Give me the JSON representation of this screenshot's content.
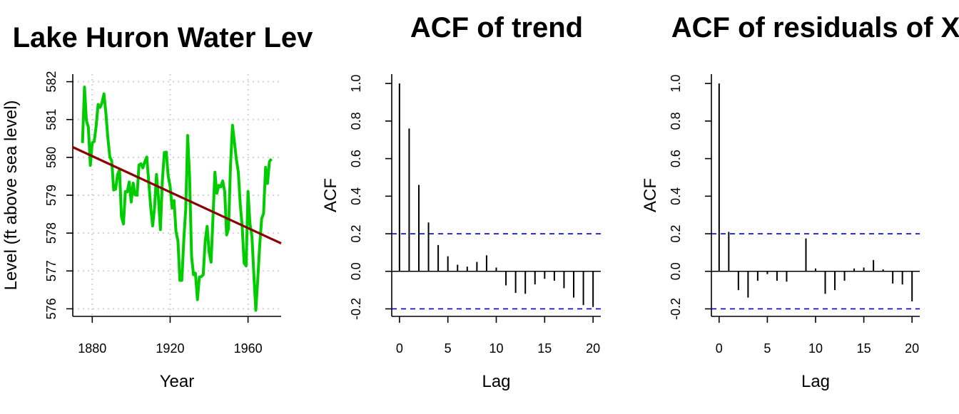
{
  "chart_data": [
    {
      "type": "line",
      "title": "Lake Huron Water Lev",
      "xlabel": "Year",
      "ylabel": "Level (ft above sea level)",
      "xlim": [
        1870,
        1977
      ],
      "ylim": [
        575.8,
        582.2
      ],
      "xticks": [
        "1880",
        "1920",
        "1960"
      ],
      "xtick_values": [
        1880,
        1920,
        1960
      ],
      "yticks": [
        "576",
        "577",
        "578",
        "579",
        "580",
        "581",
        "582"
      ],
      "ytick_values": [
        576,
        577,
        578,
        579,
        580,
        581,
        582
      ],
      "grid": true,
      "series": [
        {
          "color": "#00cd00",
          "x": [
            1875,
            1876,
            1877,
            1878,
            1879,
            1880,
            1881,
            1882,
            1883,
            1884,
            1885,
            1886,
            1887,
            1888,
            1889,
            1890,
            1891,
            1892,
            1893,
            1894,
            1895,
            1896,
            1897,
            1898,
            1899,
            1900,
            1901,
            1902,
            1903,
            1904,
            1905,
            1906,
            1907,
            1908,
            1909,
            1910,
            1911,
            1912,
            1913,
            1914,
            1915,
            1916,
            1917,
            1918,
            1919,
            1920,
            1921,
            1922,
            1923,
            1924,
            1925,
            1926,
            1927,
            1928,
            1929,
            1930,
            1931,
            1932,
            1933,
            1934,
            1935,
            1936,
            1937,
            1938,
            1939,
            1940,
            1941,
            1942,
            1943,
            1944,
            1945,
            1946,
            1947,
            1948,
            1949,
            1950,
            1951,
            1952,
            1953,
            1954,
            1955,
            1956,
            1957,
            1958,
            1959,
            1960,
            1961,
            1962,
            1963,
            1964,
            1965,
            1966,
            1967,
            1968,
            1969,
            1970,
            1971,
            1972
          ],
          "y": [
            580.38,
            581.86,
            580.97,
            580.8,
            579.79,
            580.39,
            580.42,
            580.82,
            581.4,
            581.32,
            581.44,
            581.68,
            581.17,
            580.53,
            580.01,
            579.91,
            579.14,
            579.16,
            579.55,
            579.67,
            578.44,
            578.24,
            579.1,
            579.09,
            579.35,
            578.82,
            579.32,
            579.01,
            579.0,
            579.8,
            579.83,
            579.72,
            579.89,
            580.01,
            579.37,
            578.69,
            578.19,
            578.67,
            579.55,
            578.92,
            578.09,
            579.37,
            580.13,
            580.14,
            579.51,
            579.24,
            578.66,
            578.86,
            578.05,
            577.79,
            576.75,
            576.75,
            577.82,
            578.64,
            580.58,
            579.48,
            577.38,
            576.9,
            576.94,
            576.24,
            576.84,
            576.85,
            576.9,
            577.79,
            578.18,
            577.51,
            577.23,
            578.42,
            579.61,
            579.05,
            579.26,
            579.22,
            579.38,
            579.1,
            577.95,
            578.12,
            579.75,
            580.85,
            580.41,
            579.96,
            579.61,
            578.76,
            578.18,
            577.21,
            577.13,
            579.1,
            578.25,
            577.91,
            576.89,
            575.96,
            576.8,
            577.68,
            578.38,
            578.52,
            579.74,
            579.31,
            579.89,
            579.96
          ]
        },
        {
          "color": "#8b0000",
          "x": [
            1870,
            1977
          ],
          "y": [
            580.27,
            577.73
          ]
        }
      ]
    },
    {
      "type": "bar",
      "title": "ACF of trend",
      "xlabel": "Lag",
      "ylabel": "ACF",
      "xlim": [
        -0.8,
        20.8
      ],
      "ylim": [
        -0.24,
        1.05
      ],
      "xticks": [
        "0",
        "5",
        "10",
        "15",
        "20"
      ],
      "xtick_values": [
        0,
        5,
        10,
        15,
        20
      ],
      "yticks": [
        "-0.2",
        "0.0",
        "0.2",
        "0.4",
        "0.6",
        "0.8",
        "1.0"
      ],
      "ytick_values": [
        -0.2,
        0.0,
        0.2,
        0.4,
        0.6,
        0.8,
        1.0
      ],
      "conf_bound": 0.2,
      "conf_color": "#0000cd",
      "lags": [
        0,
        1,
        2,
        3,
        4,
        5,
        6,
        7,
        8,
        9,
        10,
        11,
        12,
        13,
        14,
        15,
        16,
        17,
        18,
        19,
        20
      ],
      "values": [
        1.0,
        0.76,
        0.46,
        0.26,
        0.14,
        0.08,
        0.035,
        0.025,
        0.05,
        0.085,
        0.02,
        -0.075,
        -0.115,
        -0.12,
        -0.07,
        -0.04,
        -0.05,
        -0.09,
        -0.14,
        -0.18,
        -0.19
      ]
    },
    {
      "type": "bar",
      "title": "ACF of residuals of X",
      "xlabel": "Lag",
      "ylabel": "ACF",
      "xlim": [
        -0.8,
        20.8
      ],
      "ylim": [
        -0.24,
        1.05
      ],
      "xticks": [
        "0",
        "5",
        "10",
        "15",
        "20"
      ],
      "xtick_values": [
        0,
        5,
        10,
        15,
        20
      ],
      "yticks": [
        "-0.2",
        "0.0",
        "0.2",
        "0.4",
        "0.6",
        "0.8",
        "1.0"
      ],
      "ytick_values": [
        -0.2,
        0.0,
        0.2,
        0.4,
        0.6,
        0.8,
        1.0
      ],
      "conf_bound": 0.2,
      "conf_color": "#0000cd",
      "lags": [
        0,
        1,
        2,
        3,
        4,
        5,
        6,
        7,
        8,
        9,
        10,
        11,
        12,
        13,
        14,
        15,
        16,
        17,
        18,
        19,
        20
      ],
      "values": [
        1.0,
        0.21,
        -0.1,
        -0.14,
        -0.05,
        -0.015,
        -0.05,
        -0.055,
        0.0,
        0.175,
        0.015,
        -0.12,
        -0.1,
        -0.05,
        0.015,
        0.02,
        0.06,
        0.01,
        -0.065,
        -0.07,
        -0.16
      ]
    }
  ]
}
